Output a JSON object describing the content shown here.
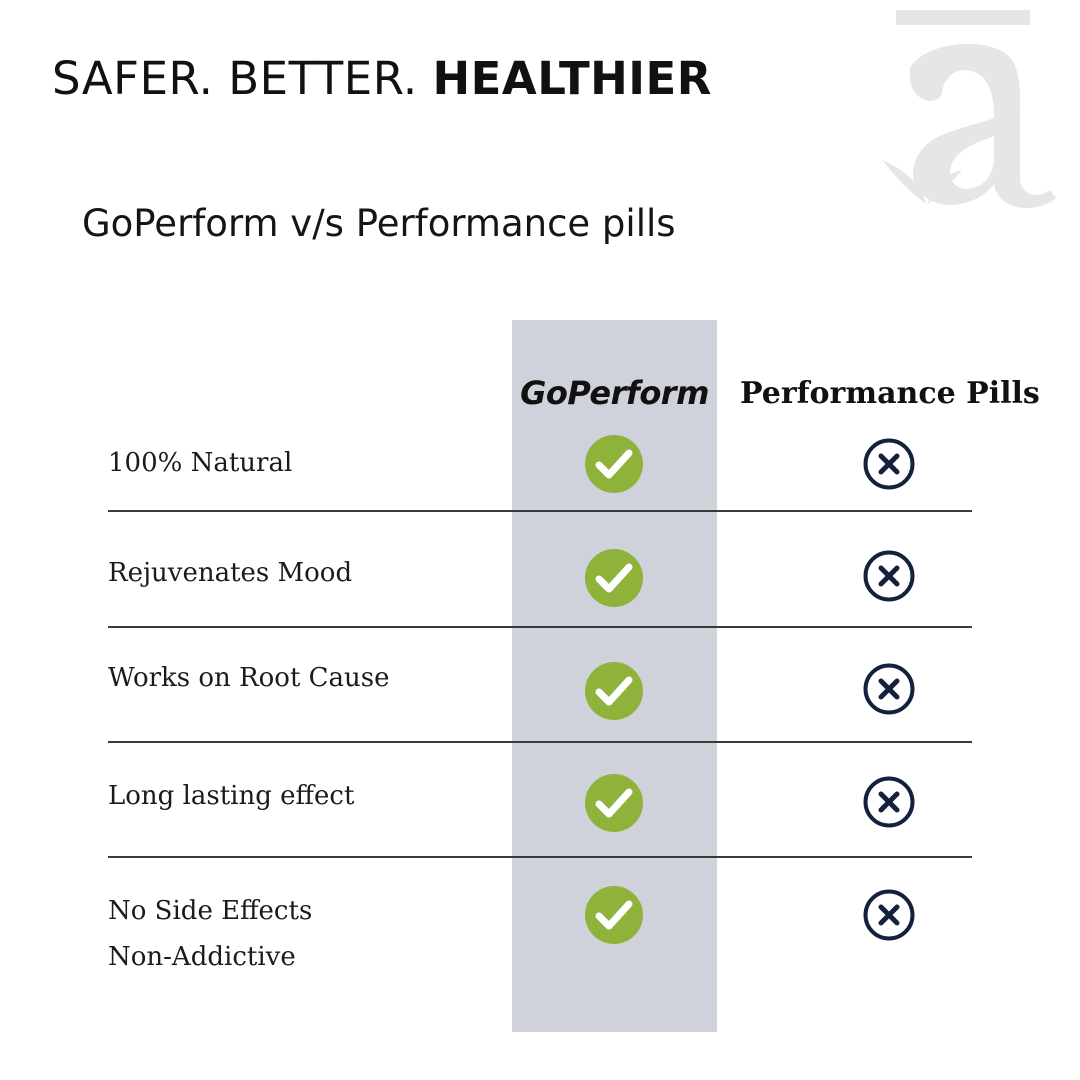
{
  "header": {
    "headline_regular": "SAFER. BETTER.",
    "headline_bold": "HEALTHIER",
    "subtitle": "GoPerform v/s Performance pills"
  },
  "table": {
    "columns": [
      "GoPerform",
      "Performance Pills"
    ],
    "rows": [
      {
        "label": [
          "100% Natural"
        ],
        "goperform": "check-icon",
        "pills": "cross-icon"
      },
      {
        "label": [
          "Rejuvenates Mood"
        ],
        "goperform": "check-icon",
        "pills": "cross-icon"
      },
      {
        "label": [
          "Works on Root Cause"
        ],
        "goperform": "check-icon",
        "pills": "cross-icon"
      },
      {
        "label": [
          "Long lasting effect"
        ],
        "goperform": "check-icon",
        "pills": "cross-icon"
      },
      {
        "label": [
          "No Side Effects",
          "Non-Addictive"
        ],
        "goperform": "check-icon",
        "pills": "cross-icon"
      }
    ]
  },
  "colors": {
    "highlight_column": "#cfd2db",
    "check": "#8fb33a",
    "cross": "#14213d",
    "logo": "#e6e6e6"
  }
}
